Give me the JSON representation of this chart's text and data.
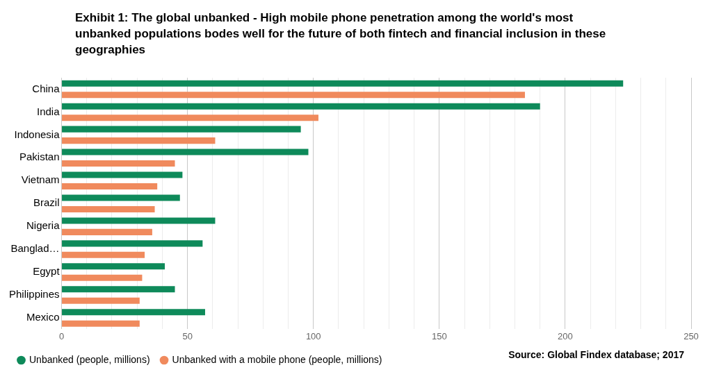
{
  "chart_data": {
    "type": "bar",
    "orientation": "horizontal",
    "title": "Exhibit 1: The global unbanked - High mobile phone penetration among the world's most unbanked populations bodes well for the future of both fintech and financial inclusion in these geographies",
    "categories": [
      "China",
      "India",
      "Indonesia",
      "Pakistan",
      "Vietnam",
      "Brazil",
      "Nigeria",
      "Banglad…",
      "Egypt",
      "Philippines",
      "Mexico"
    ],
    "series": [
      {
        "name": "Unbanked (people, millions)",
        "color": "#0e8a5a",
        "values": [
          223,
          190,
          95,
          98,
          48,
          47,
          61,
          56,
          41,
          45,
          57
        ]
      },
      {
        "name": "Unbanked with a mobile phone (people, millions)",
        "color": "#f08a5d",
        "values": [
          184,
          102,
          61,
          45,
          38,
          37,
          36,
          33,
          32,
          31,
          31
        ]
      }
    ],
    "xlim": [
      0,
      250
    ],
    "xticks": [
      0,
      {
        "value": 10,
        "label": null
      },
      {
        "value": 20,
        "label": null
      },
      {
        "value": 30,
        "label": null
      },
      {
        "value": 40,
        "label": null
      },
      50,
      {
        "value": 60,
        "label": null
      },
      {
        "value": 70,
        "label": null
      },
      {
        "value": 80,
        "label": null
      },
      {
        "value": 90,
        "label": null
      },
      100,
      {
        "value": 110,
        "label": null
      },
      {
        "value": 120,
        "label": null
      },
      {
        "value": 130,
        "label": null
      },
      {
        "value": 140,
        "label": null
      },
      150,
      {
        "value": 160,
        "label": null
      },
      {
        "value": 170,
        "label": null
      },
      {
        "value": 180,
        "label": null
      },
      {
        "value": 190,
        "label": null
      },
      200,
      {
        "value": 210,
        "label": null
      },
      {
        "value": 220,
        "label": null
      },
      {
        "value": 230,
        "label": null
      },
      {
        "value": 240,
        "label": null
      },
      250
    ],
    "grid": "x",
    "legend": "bottom left",
    "annotations": [
      "Source: Global Findex database; 2017"
    ]
  }
}
